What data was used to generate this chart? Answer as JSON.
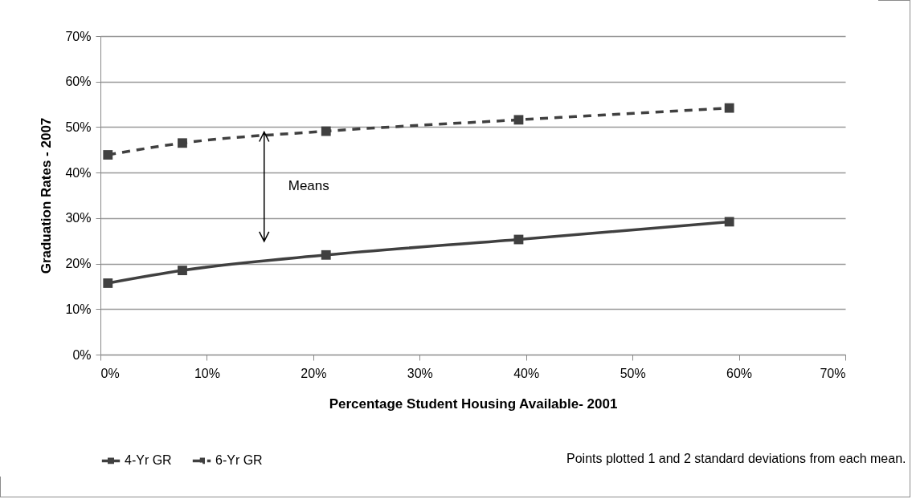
{
  "chart_data": {
    "type": "line",
    "xlabel": "Percentage Student Housing Available- 2001",
    "ylabel": "Graduation Rates - 2007",
    "x": [
      0.7,
      7.7,
      21.2,
      39.3,
      59.1
    ],
    "series": [
      {
        "name": "4-Yr GR",
        "color": "#404040",
        "line_style": "solid",
        "values": [
          15.7,
          18.5,
          21.9,
          25.3,
          29.2
        ]
      },
      {
        "name": "6-Yr GR",
        "color": "#404040",
        "line_style": "dashed",
        "values": [
          43.9,
          46.5,
          49.1,
          51.6,
          54.2
        ]
      }
    ],
    "xlim": [
      0,
      70
    ],
    "ylim": [
      0,
      70
    ],
    "xticks": [
      {
        "value": 0,
        "label": "0%"
      },
      {
        "value": 10,
        "label": "10%"
      },
      {
        "value": 20,
        "label": "20%"
      },
      {
        "value": 30,
        "label": "30%"
      },
      {
        "value": 40,
        "label": "40%"
      },
      {
        "value": 50,
        "label": "50%"
      },
      {
        "value": 60,
        "label": "60%"
      },
      {
        "value": 70,
        "label": "70%"
      }
    ],
    "yticks": [
      {
        "value": 0,
        "label": "0%"
      },
      {
        "value": 10,
        "label": "10%"
      },
      {
        "value": 20,
        "label": "20%"
      },
      {
        "value": 30,
        "label": "30%"
      },
      {
        "value": 40,
        "label": "40%"
      },
      {
        "value": 50,
        "label": "50%"
      },
      {
        "value": 60,
        "label": "60%"
      },
      {
        "value": 70,
        "label": "70%"
      }
    ],
    "grid": "y",
    "legend": "bottom",
    "marker": "square",
    "annotations": [
      "Means",
      "Points plotted 1 and 2 standard deviations from each mean."
    ]
  }
}
